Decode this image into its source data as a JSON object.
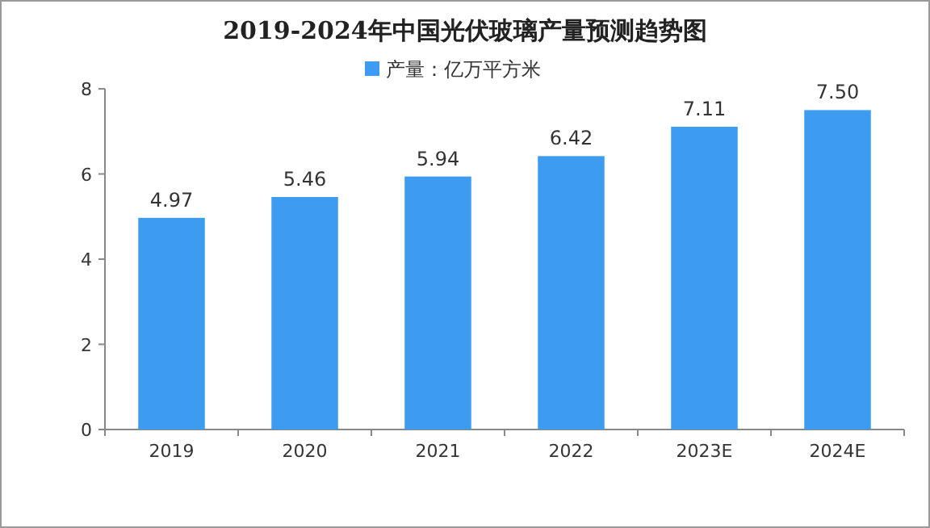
{
  "chart_data": {
    "type": "bar",
    "title": "2019-2024年中国光伏玻璃产量预测趋势图",
    "categories": [
      "2019",
      "2020",
      "2021",
      "2022",
      "2023E",
      "2024E"
    ],
    "series": [
      {
        "name": "产量：亿万平方米",
        "color": "#3d9cf0",
        "values": [
          4.97,
          5.46,
          5.94,
          6.42,
          7.11,
          7.5
        ],
        "value_labels": [
          "4.97",
          "5.46",
          "5.94",
          "6.42",
          "7.11",
          "7.50"
        ]
      }
    ],
    "ylim": [
      0,
      8
    ],
    "yticks": [
      0,
      2,
      4,
      6,
      8
    ],
    "legend": "top"
  }
}
